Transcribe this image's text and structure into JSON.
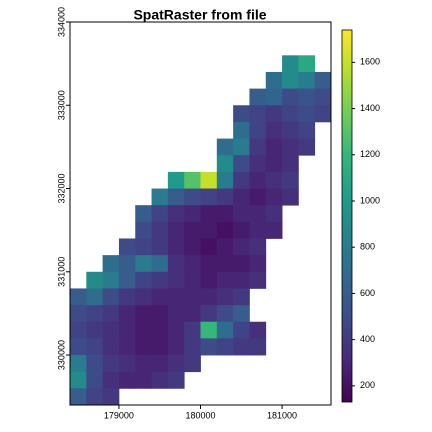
{
  "chart_data": {
    "type": "raster",
    "title": "SpatRaster from file",
    "x": [
      178500,
      178700,
      178900,
      179100,
      179300,
      179500,
      179700,
      179900,
      180100,
      180300,
      180500,
      180700,
      180900,
      181100,
      181300,
      181500
    ],
    "y": [
      333900,
      333700,
      333500,
      333300,
      333100,
      332900,
      332700,
      332500,
      332300,
      332100,
      331900,
      331700,
      331500,
      331300,
      331100,
      330900,
      330700,
      330500,
      330300,
      330100,
      329900,
      329700,
      329500
    ],
    "values": [
      [
        null,
        null,
        null,
        null,
        null,
        null,
        null,
        null,
        null,
        null,
        null,
        null,
        null,
        null,
        null,
        null
      ],
      [
        null,
        null,
        null,
        null,
        null,
        null,
        null,
        null,
        null,
        null,
        null,
        null,
        null,
        null,
        null,
        null
      ],
      [
        null,
        null,
        null,
        null,
        null,
        null,
        null,
        null,
        null,
        null,
        null,
        null,
        null,
        900,
        1100,
        null
      ],
      [
        null,
        null,
        null,
        null,
        null,
        null,
        null,
        null,
        null,
        null,
        null,
        null,
        700,
        900,
        800,
        600
      ],
      [
        null,
        null,
        null,
        null,
        null,
        null,
        null,
        null,
        null,
        null,
        null,
        600,
        650,
        500,
        550,
        500
      ],
      [
        null,
        null,
        null,
        null,
        null,
        null,
        null,
        null,
        null,
        null,
        500,
        450,
        400,
        450,
        500,
        450
      ],
      [
        null,
        null,
        null,
        null,
        null,
        null,
        null,
        null,
        null,
        null,
        700,
        450,
        350,
        400,
        450,
        null
      ],
      [
        null,
        null,
        null,
        null,
        null,
        null,
        null,
        null,
        null,
        700,
        800,
        400,
        300,
        350,
        400,
        null
      ],
      [
        null,
        null,
        null,
        null,
        null,
        null,
        null,
        null,
        null,
        900,
        500,
        350,
        300,
        350,
        null,
        null
      ],
      [
        null,
        null,
        null,
        null,
        null,
        null,
        1000,
        1300,
        1600,
        800,
        400,
        300,
        350,
        400,
        null,
        null
      ],
      [
        null,
        null,
        null,
        null,
        null,
        800,
        600,
        500,
        450,
        400,
        300,
        250,
        300,
        350,
        null,
        null
      ],
      [
        null,
        null,
        null,
        null,
        600,
        450,
        350,
        300,
        250,
        250,
        300,
        300,
        350,
        null,
        null,
        null
      ],
      [
        null,
        null,
        null,
        null,
        500,
        400,
        300,
        250,
        250,
        200,
        250,
        300,
        300,
        null,
        null,
        null
      ],
      [
        null,
        null,
        null,
        500,
        450,
        400,
        300,
        250,
        200,
        250,
        300,
        350,
        null,
        null,
        null,
        null
      ],
      [
        null,
        null,
        700,
        600,
        800,
        700,
        350,
        300,
        250,
        250,
        250,
        300,
        null,
        null,
        null,
        null
      ],
      [
        null,
        900,
        800,
        600,
        450,
        400,
        350,
        300,
        250,
        300,
        300,
        350,
        null,
        null,
        null,
        null
      ],
      [
        600,
        700,
        500,
        400,
        350,
        300,
        300,
        300,
        300,
        350,
        400,
        null,
        null,
        null,
        null,
        null
      ],
      [
        500,
        450,
        400,
        300,
        250,
        250,
        300,
        300,
        400,
        500,
        600,
        null,
        null,
        null,
        null,
        null
      ],
      [
        450,
        400,
        350,
        300,
        250,
        250,
        300,
        400,
        1200,
        700,
        450,
        350,
        null,
        null,
        null,
        null
      ],
      [
        500,
        450,
        350,
        300,
        250,
        250,
        300,
        400,
        500,
        450,
        400,
        400,
        null,
        null,
        null,
        null
      ],
      [
        800,
        500,
        400,
        350,
        300,
        300,
        350,
        400,
        null,
        null,
        null,
        null,
        null,
        null,
        null,
        null
      ],
      [
        900,
        500,
        350,
        300,
        300,
        350,
        400,
        null,
        null,
        null,
        null,
        null,
        null,
        null,
        null,
        null
      ],
      [
        600,
        450,
        400,
        null,
        null,
        null,
        null,
        null,
        null,
        null,
        null,
        null,
        null,
        null,
        null,
        null
      ]
    ],
    "xlim": [
      178400,
      181600
    ],
    "ylim": [
      329400,
      334000
    ],
    "xticks": [
      179000,
      180000,
      181000
    ],
    "yticks": [
      330000,
      331000,
      332000,
      333000,
      334000
    ],
    "zlim": [
      130,
      1740
    ],
    "zticks": [
      200,
      400,
      600,
      800,
      1000,
      1200,
      1400,
      1600
    ],
    "colormap": [
      "#440154",
      "#482878",
      "#3e4a89",
      "#31688e",
      "#26828e",
      "#1f9e89",
      "#35b779",
      "#6ece58",
      "#b5de2b",
      "#fde725"
    ]
  }
}
